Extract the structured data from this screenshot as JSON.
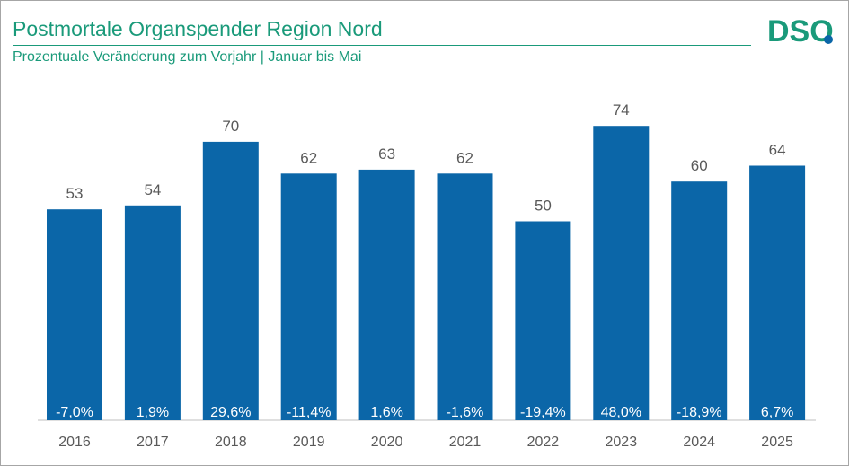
{
  "header": {
    "title": "Postmortale Organspender Region Nord",
    "subtitle": "Prozentuale Veränderung zum Vorjahr | Januar bis Mai",
    "logo_text": "DSO"
  },
  "colors": {
    "accent": "#1a9a7a",
    "bar": "#0b66a8",
    "logo_dot": "#0b66a8"
  },
  "chart_data": {
    "type": "bar",
    "title": "Postmortale Organspender Region Nord",
    "subtitle": "Prozentuale Veränderung zum Vorjahr | Januar bis Mai",
    "categories": [
      "2016",
      "2017",
      "2018",
      "2019",
      "2020",
      "2021",
      "2022",
      "2023",
      "2024",
      "2025"
    ],
    "values": [
      53,
      54,
      70,
      62,
      63,
      62,
      50,
      74,
      60,
      64
    ],
    "change_labels": [
      "-7,0%",
      "1,9%",
      "29,6%",
      "-11,4%",
      "1,6%",
      "-1,6%",
      "-19,4%",
      "48,0%",
      "-18,9%",
      "6,7%"
    ],
    "xlabel": "",
    "ylabel": "",
    "ylim": [
      0,
      80
    ],
    "grid": false,
    "legend": "none"
  }
}
